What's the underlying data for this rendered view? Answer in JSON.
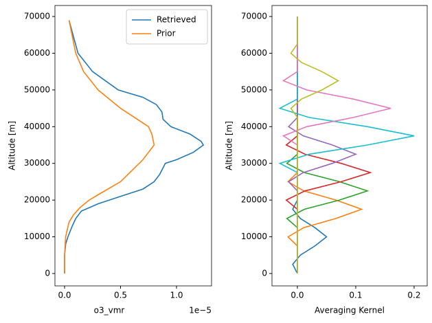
{
  "chart_data": [
    {
      "type": "line",
      "xlabel": "o3_vmr",
      "ylabel": "Altitude [m]",
      "x_offset_label": "1e−5",
      "xlim": [
        -0.086,
        1.313
      ],
      "ylim": [
        -3370,
        73000
      ],
      "xticks": [
        {
          "value": 0,
          "label": "0.0"
        },
        0.5,
        {
          "value": 1,
          "label": "1.0"
        }
      ],
      "yticks": [
        0,
        10000,
        20000,
        30000,
        40000,
        50000,
        60000,
        70000
      ],
      "legend": "upper right",
      "series": [
        {
          "name": "Retrieved",
          "color": "#1f77b4",
          "altitude": [
            69000,
            60000,
            55000,
            50000,
            48000,
            46000,
            44000,
            42000,
            40000,
            38000,
            36000,
            35000,
            33000,
            31000,
            30000,
            27000,
            25000,
            23000,
            21000,
            19000,
            17000,
            15000,
            13000,
            10000,
            8000,
            5000,
            0
          ],
          "values": [
            0.04,
            0.12,
            0.25,
            0.48,
            0.7,
            0.82,
            0.87,
            0.88,
            0.95,
            1.12,
            1.22,
            1.24,
            1.15,
            1.0,
            0.9,
            0.85,
            0.8,
            0.7,
            0.5,
            0.3,
            0.15,
            0.1,
            0.07,
            0.03,
            0.01,
            0,
            0
          ]
        },
        {
          "name": "Prior",
          "color": "#ff7f0e",
          "altitude": [
            69000,
            60000,
            55000,
            50000,
            45000,
            42000,
            40000,
            38000,
            35000,
            33000,
            31000,
            28000,
            25000,
            22000,
            20000,
            18000,
            16000,
            14000,
            10000,
            5000,
            0
          ],
          "values": [
            0.04,
            0.1,
            0.17,
            0.3,
            0.5,
            0.65,
            0.75,
            0.78,
            0.8,
            0.75,
            0.7,
            0.6,
            0.5,
            0.33,
            0.22,
            0.14,
            0.08,
            0.04,
            0.01,
            0,
            0
          ]
        }
      ]
    },
    {
      "type": "line",
      "xlabel": "Averaging Kernel",
      "ylabel": "Altitude [m]",
      "xlim": [
        -0.0435,
        0.2224
      ],
      "ylim": [
        -3370,
        73000
      ],
      "xticks": [
        {
          "value": 0,
          "label": "0.0"
        },
        0.1,
        0.2
      ],
      "yticks": [
        0,
        10000,
        20000,
        30000,
        40000,
        50000,
        60000,
        70000
      ],
      "altitude": [
        0,
        2500,
        5000,
        7500,
        10000,
        12500,
        15000,
        17500,
        20000,
        22500,
        25000,
        27500,
        30000,
        32500,
        35000,
        37500,
        40000,
        42500,
        45000,
        47500,
        50000,
        52500,
        55000,
        57500,
        60000,
        62500,
        65000,
        67500,
        70000
      ],
      "series": [
        {
          "color": "#1f77b4",
          "values": [
            0,
            -0.008,
            0.005,
            0.03,
            0.05,
            0.03,
            0.005,
            -0.008,
            0,
            0,
            0,
            0,
            0,
            0,
            0,
            0,
            0,
            0,
            0,
            0,
            0,
            0,
            0,
            0,
            0,
            0,
            0,
            0,
            0
          ]
        },
        {
          "color": "#ff7f0e",
          "values": [
            0,
            0,
            0,
            0,
            -0.016,
            0.011,
            0.066,
            0.11,
            0.066,
            0.011,
            -0.016,
            0,
            0,
            0,
            0,
            0,
            0,
            0,
            0,
            0,
            0,
            0,
            0,
            0,
            0,
            0,
            0,
            0,
            0
          ]
        },
        {
          "color": "#2ca02c",
          "values": [
            0,
            0,
            0,
            0,
            0,
            0,
            -0.018,
            0.012,
            0.072,
            0.12,
            0.072,
            0.012,
            -0.018,
            0,
            0,
            0,
            0,
            0,
            0,
            0,
            0,
            0,
            0,
            0,
            0,
            0,
            0,
            0,
            0
          ]
        },
        {
          "color": "#d62728",
          "values": [
            0,
            0,
            0,
            0,
            0,
            0,
            0,
            0,
            -0.019,
            0.013,
            0.075,
            0.125,
            0.075,
            0.013,
            -0.019,
            0,
            0,
            0,
            0,
            0,
            0,
            0,
            0,
            0,
            0,
            0,
            0,
            0,
            0
          ]
        },
        {
          "color": "#9467bd",
          "values": [
            0,
            0,
            0,
            0,
            0,
            0,
            0,
            0,
            0,
            0,
            -0.015,
            0.01,
            0.06,
            0.1,
            0.06,
            0.01,
            -0.015,
            0,
            0,
            0,
            0,
            0,
            0,
            0,
            0,
            0,
            0,
            0,
            0
          ]
        },
        {
          "color": "#17becf",
          "values": [
            0,
            0,
            0,
            0,
            0,
            0,
            0,
            0,
            0,
            0,
            0,
            0,
            -0.03,
            0.02,
            0.12,
            0.2,
            0.12,
            0.02,
            -0.03,
            0,
            0,
            0,
            0,
            0,
            0,
            0,
            0,
            0,
            0
          ]
        },
        {
          "color": "#e377c2",
          "values": [
            0,
            0,
            0,
            0,
            0,
            0,
            0,
            0,
            0,
            0,
            0,
            0,
            0,
            0,
            0,
            -0.024,
            0.016,
            0.096,
            0.16,
            0.096,
            0.016,
            -0.024,
            0,
            0,
            0,
            0,
            0,
            0,
            0
          ]
        },
        {
          "color": "#bcbd22",
          "values": [
            0,
            0,
            0,
            0,
            0,
            0,
            0,
            0,
            0,
            0,
            0,
            0,
            0,
            0,
            0,
            0,
            0,
            0,
            -0.011,
            0.007,
            0.042,
            0.07,
            0.042,
            0.007,
            -0.011,
            0,
            0,
            0,
            0
          ]
        }
      ]
    }
  ]
}
